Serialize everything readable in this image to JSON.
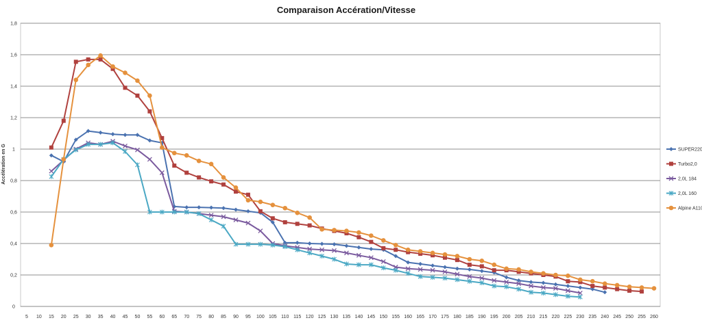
{
  "chart_data": {
    "type": "line",
    "title": "Comparaison Accération/Vitesse",
    "xlabel": "",
    "ylabel": "Accélération en G",
    "x_ticks": [
      5,
      10,
      15,
      20,
      25,
      30,
      35,
      40,
      45,
      50,
      55,
      60,
      65,
      70,
      75,
      80,
      85,
      90,
      95,
      100,
      105,
      110,
      115,
      120,
      125,
      130,
      135,
      140,
      145,
      150,
      155,
      160,
      165,
      170,
      175,
      180,
      185,
      190,
      195,
      200,
      205,
      210,
      215,
      220,
      225,
      230,
      235,
      240,
      245,
      250,
      255,
      260
    ],
    "y_ticks": [
      0,
      0.2,
      0.4,
      0.6,
      0.8,
      1,
      1.2,
      1.4,
      1.6,
      1.8
    ],
    "y_tick_labels": [
      "0",
      "0,2",
      "0,4",
      "0,6",
      "0,8",
      "1",
      "1,2",
      "1,4",
      "1,6",
      "1,8"
    ],
    "xlim": [
      2.5,
      262.5
    ],
    "ylim": [
      0,
      1.8
    ],
    "grid": "horizontal",
    "legend_position": "right",
    "series": [
      {
        "name": "SUPER220",
        "color": "#4a72b0",
        "marker": "diamond",
        "x": [
          15,
          20,
          25,
          30,
          35,
          40,
          45,
          50,
          55,
          60,
          65,
          70,
          75,
          80,
          85,
          90,
          95,
          100,
          105,
          110,
          115,
          120,
          125,
          130,
          135,
          140,
          145,
          150,
          155,
          160,
          165,
          170,
          175,
          180,
          185,
          190,
          195,
          200,
          205,
          210,
          215,
          220,
          225,
          230,
          235,
          240
        ],
        "y": [
          0.96,
          0.92,
          1.06,
          1.115,
          1.105,
          1.095,
          1.09,
          1.09,
          1.055,
          1.04,
          0.635,
          0.63,
          0.63,
          0.628,
          0.625,
          0.615,
          0.605,
          0.595,
          0.535,
          0.405,
          0.405,
          0.4,
          0.398,
          0.395,
          0.385,
          0.375,
          0.365,
          0.36,
          0.32,
          0.28,
          0.27,
          0.26,
          0.25,
          0.24,
          0.235,
          0.225,
          0.215,
          0.185,
          0.165,
          0.155,
          0.15,
          0.14,
          0.13,
          0.12,
          0.11,
          0.09
        ]
      },
      {
        "name": "Turbo2,0",
        "color": "#b0413e",
        "marker": "square",
        "x": [
          15,
          20,
          25,
          30,
          35,
          40,
          45,
          50,
          55,
          60,
          65,
          70,
          75,
          80,
          85,
          90,
          95,
          100,
          105,
          110,
          115,
          120,
          125,
          130,
          135,
          140,
          145,
          150,
          155,
          160,
          165,
          170,
          175,
          180,
          185,
          190,
          195,
          200,
          205,
          210,
          215,
          220,
          225,
          230,
          235,
          240,
          245,
          250,
          255
        ],
        "y": [
          1.01,
          1.18,
          1.555,
          1.57,
          1.57,
          1.51,
          1.39,
          1.34,
          1.24,
          1.07,
          0.895,
          0.85,
          0.82,
          0.795,
          0.775,
          0.73,
          0.71,
          0.605,
          0.56,
          0.535,
          0.525,
          0.515,
          0.495,
          0.48,
          0.465,
          0.44,
          0.41,
          0.37,
          0.36,
          0.345,
          0.335,
          0.325,
          0.31,
          0.295,
          0.265,
          0.255,
          0.23,
          0.23,
          0.22,
          0.21,
          0.2,
          0.19,
          0.16,
          0.155,
          0.13,
          0.12,
          0.11,
          0.1,
          0.095
        ]
      },
      {
        "name": "2,0L 184",
        "color": "#7a5a9e",
        "marker": "x",
        "x": [
          15,
          20,
          25,
          30,
          35,
          40,
          45,
          50,
          55,
          60,
          65,
          70,
          75,
          80,
          85,
          90,
          95,
          100,
          105,
          110,
          115,
          120,
          125,
          130,
          135,
          140,
          145,
          150,
          155,
          160,
          165,
          170,
          175,
          180,
          185,
          190,
          195,
          200,
          205,
          210,
          215,
          220,
          225,
          230
        ],
        "y": [
          0.86,
          0.93,
          1.0,
          1.04,
          1.03,
          1.05,
          1.02,
          0.995,
          0.935,
          0.85,
          0.605,
          0.6,
          0.59,
          0.58,
          0.57,
          0.55,
          0.53,
          0.48,
          0.4,
          0.385,
          0.375,
          0.365,
          0.36,
          0.355,
          0.34,
          0.325,
          0.31,
          0.285,
          0.25,
          0.24,
          0.235,
          0.23,
          0.22,
          0.205,
          0.19,
          0.18,
          0.165,
          0.155,
          0.145,
          0.13,
          0.12,
          0.115,
          0.1,
          0.085
        ]
      },
      {
        "name": "2,0L 160",
        "color": "#4aa8c4",
        "marker": "star",
        "x": [
          15,
          20,
          25,
          30,
          35,
          40,
          45,
          50,
          55,
          60,
          65,
          70,
          75,
          80,
          85,
          90,
          95,
          100,
          105,
          110,
          115,
          120,
          125,
          130,
          135,
          140,
          145,
          150,
          155,
          160,
          165,
          170,
          175,
          180,
          185,
          190,
          195,
          200,
          205,
          210,
          215,
          220,
          225,
          230
        ],
        "y": [
          0.825,
          0.935,
          0.995,
          1.03,
          1.03,
          1.04,
          0.985,
          0.9,
          0.6,
          0.6,
          0.6,
          0.6,
          0.59,
          0.55,
          0.51,
          0.395,
          0.395,
          0.395,
          0.39,
          0.38,
          0.36,
          0.34,
          0.32,
          0.3,
          0.27,
          0.265,
          0.265,
          0.245,
          0.23,
          0.21,
          0.19,
          0.185,
          0.18,
          0.17,
          0.16,
          0.15,
          0.13,
          0.125,
          0.11,
          0.09,
          0.085,
          0.075,
          0.065,
          0.06
        ]
      },
      {
        "name": "Alpine A110",
        "color": "#e5913d",
        "marker": "circle",
        "x": [
          15,
          20,
          25,
          30,
          35,
          40,
          45,
          50,
          55,
          60,
          65,
          70,
          75,
          80,
          85,
          90,
          95,
          100,
          105,
          110,
          115,
          120,
          125,
          130,
          135,
          140,
          145,
          150,
          155,
          160,
          165,
          170,
          175,
          180,
          185,
          190,
          195,
          200,
          205,
          210,
          215,
          220,
          225,
          230,
          235,
          240,
          245,
          250,
          255,
          260
        ],
        "y": [
          0.39,
          0.935,
          1.44,
          1.535,
          1.595,
          1.525,
          1.485,
          1.435,
          1.34,
          1.01,
          0.975,
          0.96,
          0.925,
          0.905,
          0.82,
          0.755,
          0.675,
          0.665,
          0.645,
          0.625,
          0.595,
          0.565,
          0.49,
          0.485,
          0.48,
          0.47,
          0.45,
          0.42,
          0.39,
          0.36,
          0.35,
          0.34,
          0.33,
          0.32,
          0.3,
          0.29,
          0.265,
          0.24,
          0.235,
          0.22,
          0.21,
          0.2,
          0.195,
          0.17,
          0.16,
          0.145,
          0.135,
          0.125,
          0.12,
          0.115
        ]
      }
    ]
  }
}
